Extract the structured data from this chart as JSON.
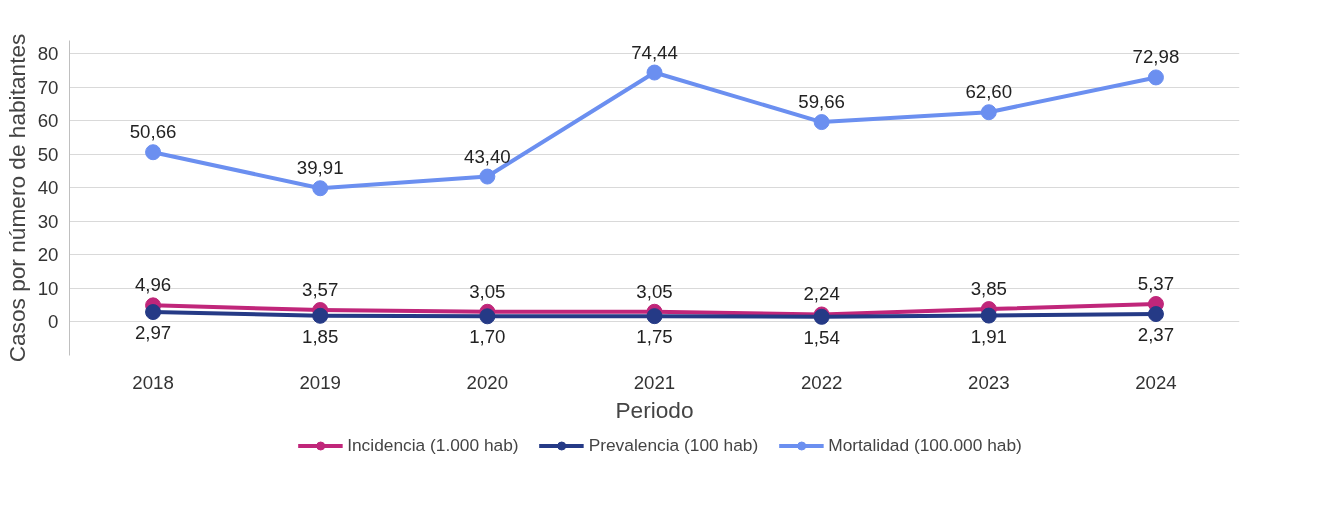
{
  "chart_data": {
    "type": "line",
    "xlabel": "Periodo",
    "ylabel": "Casos por número de habitantes",
    "categories": [
      "2018",
      "2019",
      "2020",
      "2021",
      "2022",
      "2023",
      "2024"
    ],
    "ylim": [
      -10,
      84
    ],
    "yticks": [
      0,
      10,
      20,
      30,
      40,
      50,
      60,
      70,
      80
    ],
    "grid": "y",
    "legend": "bottom",
    "marker": "circle",
    "line_style": "solid",
    "series": [
      {
        "name": "Incidencia (1.000 hab)",
        "color": "#c0267a",
        "values": [
          4.96,
          3.57,
          3.05,
          3.05,
          2.24,
          3.85,
          5.37
        ],
        "value_labels": [
          "4,96",
          "3,57",
          "3,05",
          "3,05",
          "2,24",
          "3,85",
          "5,37"
        ]
      },
      {
        "name": "Prevalencia (100 hab)",
        "color": "#253a86",
        "values": [
          2.97,
          1.85,
          1.7,
          1.75,
          1.54,
          1.91,
          2.37
        ],
        "value_labels": [
          "2,97",
          "1,85",
          "1,70",
          "1,75",
          "1,54",
          "1,91",
          "2,37"
        ]
      },
      {
        "name": "Mortalidad (100.000 hab)",
        "color": "#6b8ff0",
        "values": [
          50.66,
          39.91,
          43.4,
          74.44,
          59.66,
          62.6,
          72.98
        ],
        "value_labels": [
          "50,66",
          "39,91",
          "43,40",
          "74,44",
          "59,66",
          "62,60",
          "72,98"
        ]
      }
    ]
  }
}
